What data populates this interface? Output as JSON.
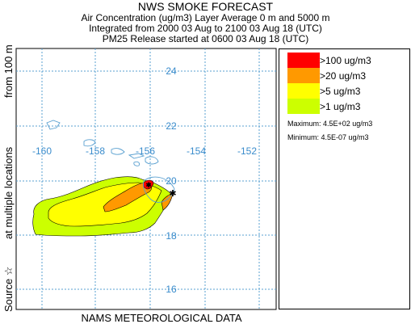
{
  "header": {
    "title": "NWS SMOKE FORECAST",
    "line1": "Air Concentration (ug/m3) Layer Average    0 m and  5000 m",
    "line2": "Integrated from 2000 03 Aug to 2100 03 Aug 18 (UTC)",
    "line3": "PM25 Release started at 0600 03 Aug 18 (UTC)"
  },
  "footer": {
    "source": "NAMS METEOROLOGICAL DATA"
  },
  "side": {
    "part1": "Source ☆",
    "part2": "at multiple locations",
    "part3": "from  100 m"
  },
  "map": {
    "lat_labels": [
      "24",
      "22",
      "20",
      "18",
      "16"
    ],
    "lon_labels": [
      "-160",
      "-158",
      "-156",
      "-154",
      "-152"
    ],
    "grid_color": "#5aa0d0",
    "label_color": "#3a8ccc"
  },
  "legend": {
    "items": [
      {
        "label": ">100 ug/m3",
        "color": "#ff0000"
      },
      {
        "label": ">20 ug/m3",
        "color": "#ff9900"
      },
      {
        "label": ">5 ug/m3",
        "color": "#ffff00"
      },
      {
        "label": ">1 ug/m3",
        "color": "#ccff00"
      }
    ],
    "maximum": "Maximum: 4.5E+02 ug/m3",
    "minimum": "Minimum: 4.5E-07 ug/m3"
  }
}
